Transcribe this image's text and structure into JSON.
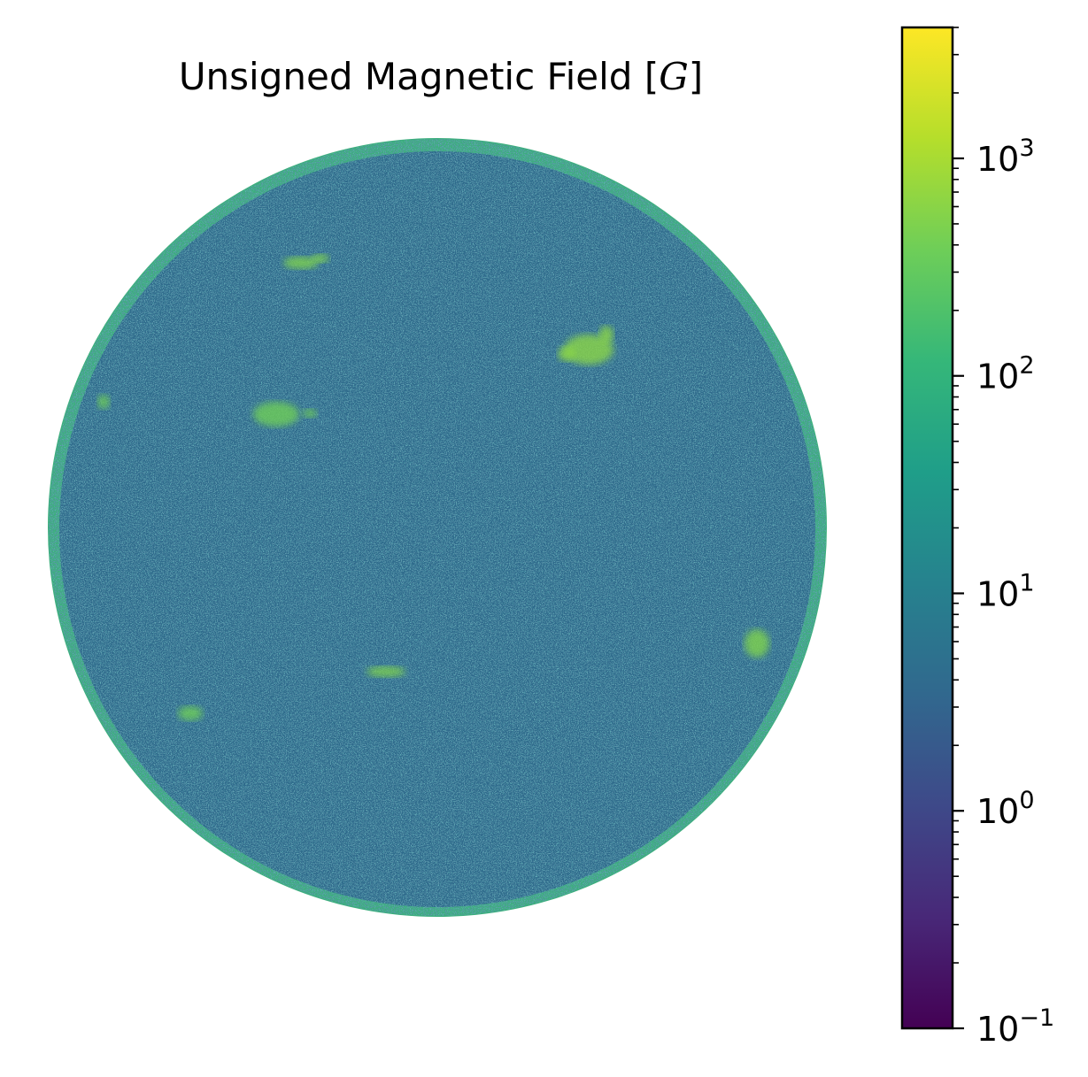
{
  "chart_data": {
    "type": "heatmap",
    "title_text": "Unsigned Magnetic Field ",
    "title_unit_open": "[",
    "title_unit": "G",
    "title_unit_close": "]",
    "colormap": "viridis",
    "colorbar": {
      "scale": "log",
      "range": [
        0.1,
        4000
      ],
      "ticks": [
        {
          "value": 0.1,
          "base": "10",
          "exp": "−1"
        },
        {
          "value": 1,
          "base": "10",
          "exp": "0"
        },
        {
          "value": 10,
          "base": "10",
          "exp": "1"
        },
        {
          "value": 100,
          "base": "10",
          "exp": "2"
        },
        {
          "value": 1000,
          "base": "10",
          "exp": "3"
        }
      ],
      "colors": [
        "#440154",
        "#482878",
        "#3e4989",
        "#31688e",
        "#26828e",
        "#1f9e89",
        "#35b779",
        "#6ece58",
        "#b5de2b",
        "#fde725"
      ]
    },
    "disk": {
      "background_color": "#2f6b8c",
      "limb_color": "#3dae7e",
      "active_regions": [
        {
          "region": "north-left",
          "color": "#7fd34e"
        },
        {
          "region": "north-right",
          "color": "#8bd646"
        },
        {
          "region": "east-limb",
          "color": "#6ece58"
        },
        {
          "region": "center-left",
          "color": "#6ece58"
        },
        {
          "region": "center-south",
          "color": "#7fd34e"
        },
        {
          "region": "west-limb",
          "color": "#7fd34e"
        },
        {
          "region": "south-east",
          "color": "#6ece58"
        }
      ]
    }
  }
}
